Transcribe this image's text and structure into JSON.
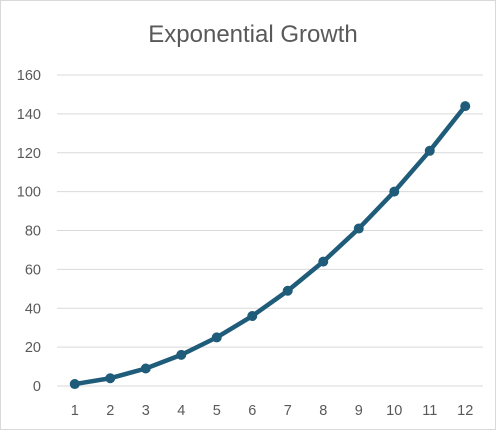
{
  "chart_data": {
    "type": "line",
    "title": "Exponential Growth",
    "xlabel": "",
    "ylabel": "",
    "categories": [
      "1",
      "2",
      "3",
      "4",
      "5",
      "6",
      "7",
      "8",
      "9",
      "10",
      "11",
      "12"
    ],
    "series": [
      {
        "values": [
          1,
          4,
          9,
          16,
          25,
          36,
          49,
          64,
          81,
          100,
          121,
          144
        ],
        "color": "#1f5c7a",
        "marker": "circle"
      }
    ],
    "ylim": [
      0,
      160
    ],
    "yticks": [
      0,
      20,
      40,
      60,
      80,
      100,
      120,
      140,
      160
    ],
    "grid": true,
    "legend": "none"
  }
}
